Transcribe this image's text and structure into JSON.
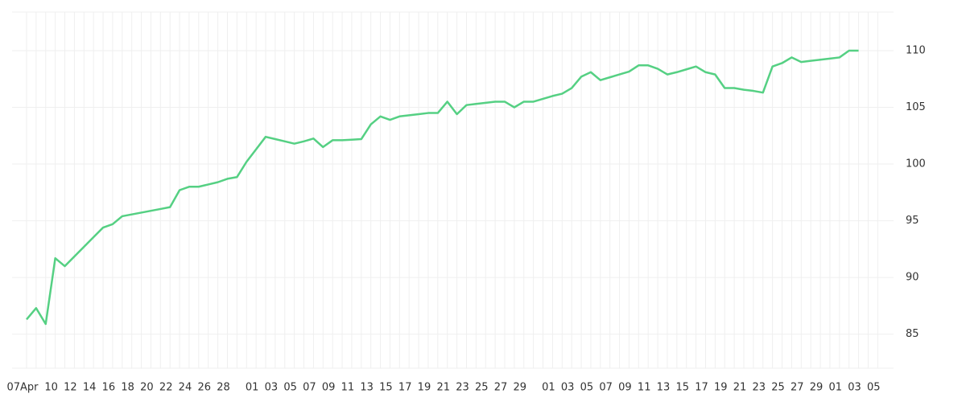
{
  "chart_data": {
    "type": "line",
    "categories": [
      "07Apr",
      null,
      null,
      "10",
      null,
      "12",
      null,
      "14",
      null,
      "16",
      null,
      "18",
      null,
      "20",
      null,
      "22",
      null,
      "24",
      null,
      "26",
      null,
      "28",
      null,
      null,
      "01",
      null,
      "03",
      null,
      "05",
      null,
      "07",
      null,
      "09",
      null,
      "11",
      null,
      "13",
      null,
      "15",
      null,
      "17",
      null,
      "19",
      null,
      "21",
      null,
      "23",
      null,
      "25",
      null,
      "27",
      null,
      "29",
      null,
      null,
      "01",
      null,
      "03",
      null,
      "05",
      null,
      "07",
      null,
      "09",
      null,
      "11",
      null,
      "13",
      null,
      "15",
      null,
      "17",
      null,
      "19",
      null,
      "21",
      null,
      "23",
      null,
      "25",
      null,
      "27",
      null,
      "29",
      null,
      "01",
      null,
      "03",
      null,
      "05"
    ],
    "series": [
      {
        "color": "#55d083",
        "values": [
          86.3,
          87.3,
          85.9,
          91.7,
          91.0,
          91.85,
          92.7,
          93.55,
          94.4,
          94.7,
          95.4,
          95.56,
          95.72,
          95.88,
          96.04,
          96.2,
          97.7,
          98.0,
          98.0,
          98.2,
          98.4,
          98.7,
          98.85,
          100.2,
          101.3,
          102.4,
          102.2,
          102.0,
          101.8,
          102.0,
          102.25,
          101.5,
          102.1,
          102.1,
          102.15,
          102.2,
          103.5,
          104.2,
          103.9,
          104.2,
          104.3,
          104.4,
          104.5,
          104.5,
          105.5,
          104.4,
          105.2,
          105.3,
          105.4,
          105.5,
          105.5,
          105.0,
          105.5,
          105.5,
          105.75,
          106.0,
          106.2,
          106.7,
          107.7,
          108.1,
          107.4,
          107.65,
          107.9,
          108.15,
          108.7,
          108.7,
          108.4,
          107.9,
          108.1,
          108.35,
          108.6,
          108.1,
          107.9,
          106.7,
          106.7,
          106.55,
          106.45,
          106.3,
          108.6,
          108.9,
          109.4,
          109.0,
          109.1,
          109.2,
          109.3,
          109.4,
          110.0,
          110.0,
          null,
          null
        ]
      }
    ],
    "ylim": [
      82,
      113.4
    ],
    "yticks": [
      85,
      90,
      95,
      100,
      105,
      110
    ],
    "grid": true
  }
}
